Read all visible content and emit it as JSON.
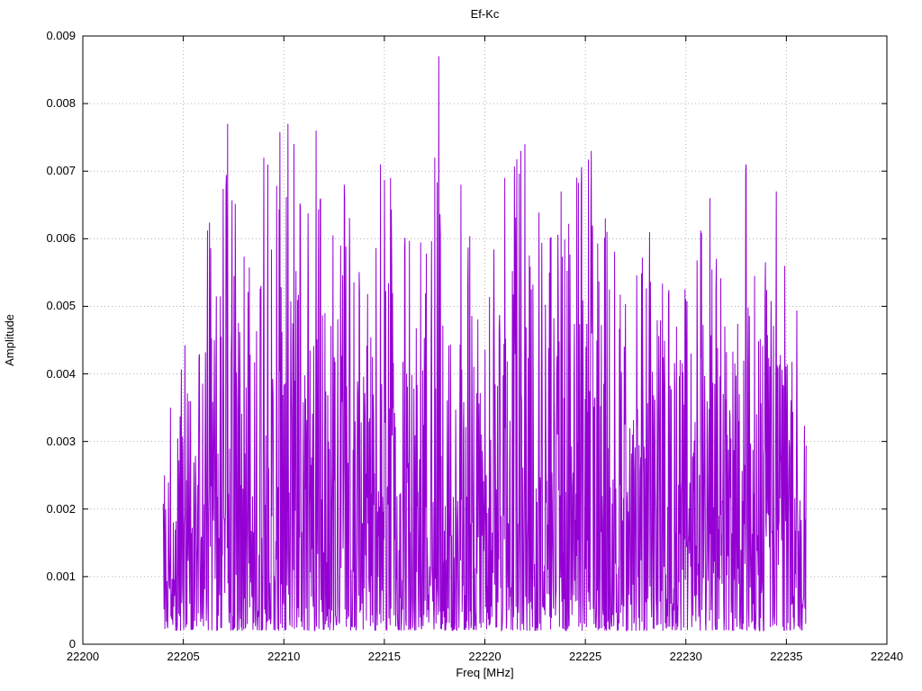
{
  "chart_data": {
    "type": "line",
    "title": "Ef-Kc",
    "xlabel": "Freq [MHz]",
    "ylabel": "Amplitude",
    "xlim": [
      22200,
      22240
    ],
    "ylim": [
      0,
      0.009
    ],
    "xticks": {
      "values": [
        22200,
        22205,
        22210,
        22215,
        22220,
        22225,
        22230,
        22235,
        22240
      ],
      "labels": [
        "22200",
        "22205",
        "22210",
        "22215",
        "22220",
        "22225",
        "22230",
        "22235",
        "22240"
      ]
    },
    "yticks": {
      "values": [
        0,
        0.001,
        0.002,
        0.003,
        0.004,
        0.005,
        0.006,
        0.007,
        0.008,
        0.009
      ],
      "labels": [
        "0",
        "0.001",
        "0.002",
        "0.003",
        "0.004",
        "0.005",
        "0.006",
        "0.007",
        "0.008",
        "0.009"
      ]
    },
    "grid": true,
    "grid_color": "#b0b0b0",
    "line_color": "#9400d3",
    "series": {
      "name": "Ef-Kc",
      "x_start": 22204.0,
      "x_end": 22236.0,
      "n_points": 1600,
      "seed": 1337,
      "noise_floor": 0.0002,
      "noise_exponent": 2.2,
      "envelope": [
        [
          22204.0,
          0.003
        ],
        [
          22205.0,
          0.0048
        ],
        [
          22206.0,
          0.006
        ],
        [
          22207.0,
          0.0077
        ],
        [
          22208.0,
          0.0067
        ],
        [
          22209.0,
          0.0072
        ],
        [
          22210.0,
          0.0077
        ],
        [
          22211.0,
          0.0065
        ],
        [
          22211.6,
          0.0076
        ],
        [
          22212.5,
          0.006
        ],
        [
          22213.0,
          0.0068
        ],
        [
          22214.0,
          0.0055
        ],
        [
          22215.0,
          0.0071
        ],
        [
          22216.0,
          0.0062
        ],
        [
          22217.0,
          0.006
        ],
        [
          22217.7,
          0.0087
        ],
        [
          22218.0,
          0.0065
        ],
        [
          22219.0,
          0.0068
        ],
        [
          22220.0,
          0.0055
        ],
        [
          22221.0,
          0.0069
        ],
        [
          22222.0,
          0.0074
        ],
        [
          22223.0,
          0.006
        ],
        [
          22224.0,
          0.0067
        ],
        [
          22225.3,
          0.0073
        ],
        [
          22226.0,
          0.0063
        ],
        [
          22227.0,
          0.0055
        ],
        [
          22228.0,
          0.0061
        ],
        [
          22229.0,
          0.0055
        ],
        [
          22230.0,
          0.0053
        ],
        [
          22231.0,
          0.0066
        ],
        [
          22232.0,
          0.005
        ],
        [
          22233.0,
          0.0071
        ],
        [
          22234.0,
          0.0058
        ],
        [
          22235.0,
          0.0056
        ],
        [
          22236.0,
          0.0044
        ]
      ],
      "peaks": [
        [
          22207.2,
          0.0077
        ],
        [
          22209.0,
          0.0072
        ],
        [
          22209.2,
          0.0071
        ],
        [
          22210.2,
          0.0077
        ],
        [
          22210.5,
          0.0074
        ],
        [
          22211.6,
          0.0076
        ],
        [
          22213.0,
          0.0068
        ],
        [
          22214.8,
          0.0071
        ],
        [
          22215.3,
          0.0069
        ],
        [
          22217.5,
          0.0072
        ],
        [
          22217.7,
          0.0087
        ],
        [
          22218.8,
          0.0068
        ],
        [
          22221.0,
          0.0069
        ],
        [
          22221.8,
          0.0073
        ],
        [
          22222.0,
          0.0074
        ],
        [
          22223.8,
          0.0067
        ],
        [
          22224.8,
          0.0068
        ],
        [
          22225.3,
          0.0073
        ],
        [
          22226.0,
          0.0063
        ],
        [
          22228.2,
          0.0061
        ],
        [
          22231.2,
          0.0066
        ],
        [
          22233.0,
          0.0071
        ],
        [
          22234.5,
          0.0067
        ]
      ]
    }
  }
}
